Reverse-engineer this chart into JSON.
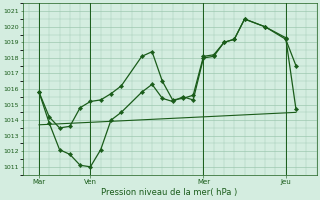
{
  "xlabel": "Pression niveau de la mer( hPa )",
  "bg_color": "#d4ede0",
  "grid_color": "#9ec8b0",
  "line_color": "#1a5c1a",
  "ylim": [
    1010.5,
    1021.5
  ],
  "yticks": [
    1011,
    1012,
    1013,
    1014,
    1015,
    1016,
    1017,
    1018,
    1019,
    1020,
    1021
  ],
  "xlim": [
    -0.3,
    14.0
  ],
  "xtick_labels": [
    "Mar",
    "Ven",
    "Mer",
    "Jeu"
  ],
  "xtick_pos": [
    0.5,
    3.0,
    8.5,
    12.5
  ],
  "vline_pos": [
    0.5,
    3.0,
    8.5,
    12.5
  ],
  "series1_x": [
    0.5,
    1.0,
    1.5,
    2.0,
    2.5,
    3.0,
    3.5,
    4.0,
    4.5,
    5.5,
    6.0,
    6.5,
    7.0,
    7.5,
    8.0,
    8.5,
    9.0,
    9.5,
    10.0,
    10.5,
    11.5,
    12.5,
    13.0
  ],
  "series1_y": [
    1015.8,
    1014.2,
    1013.5,
    1013.6,
    1014.8,
    1015.2,
    1015.3,
    1015.7,
    1016.2,
    1018.1,
    1018.4,
    1016.5,
    1015.3,
    1015.4,
    1015.6,
    1018.1,
    1018.2,
    1019.0,
    1019.2,
    1020.5,
    1020.0,
    1019.2,
    1017.5
  ],
  "series2_x": [
    0.5,
    1.0,
    1.5,
    2.0,
    2.5,
    3.0,
    3.5,
    4.0,
    4.5,
    5.5,
    6.0,
    6.5,
    7.0,
    7.5,
    8.0,
    8.5,
    9.0,
    9.5,
    10.0,
    10.5,
    11.5,
    12.5,
    13.0
  ],
  "series2_y": [
    1015.8,
    1013.8,
    1012.1,
    1011.8,
    1011.1,
    1011.0,
    1012.1,
    1014.0,
    1014.5,
    1015.8,
    1016.3,
    1015.4,
    1015.2,
    1015.5,
    1015.3,
    1018.0,
    1018.1,
    1019.0,
    1019.2,
    1020.5,
    1020.0,
    1019.3,
    1014.7
  ],
  "series3_x": [
    0.5,
    13.0
  ],
  "series3_y": [
    1013.7,
    1014.5
  ]
}
